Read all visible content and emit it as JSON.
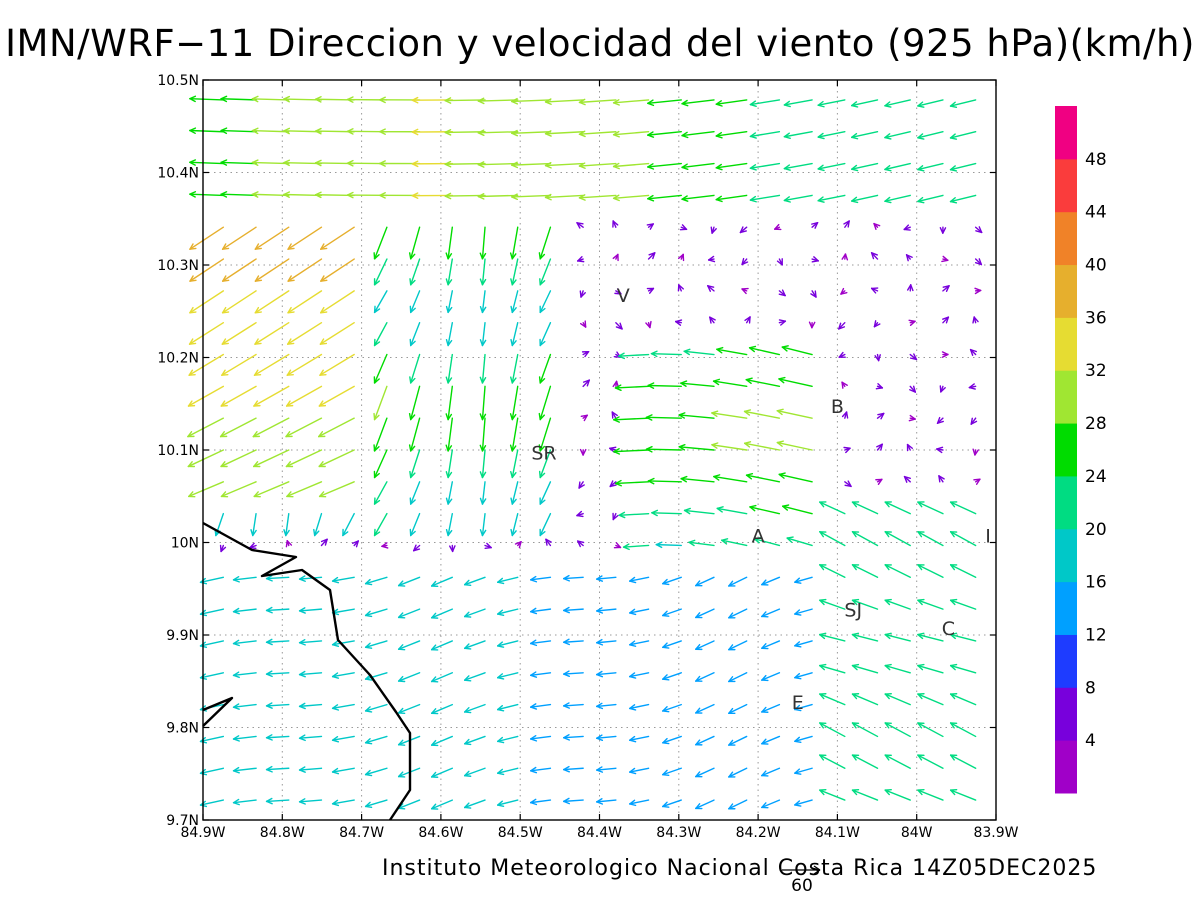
{
  "title": "IMN/WRF−11 Direccion y velocidad del viento (925 hPa)(km/h)",
  "credit": "Instituto Meteorologico Nacional Costa Rica 14Z05DEC2025",
  "reference_vector": {
    "label": "60"
  },
  "map": {
    "lon_range": [
      -84.9,
      -83.9
    ],
    "lat_range": [
      9.7,
      10.5
    ],
    "x_ticks": [
      "84.9W",
      "84.8W",
      "84.7W",
      "84.6W",
      "84.5W",
      "84.4W",
      "84.3W",
      "84.2W",
      "84.1W",
      "84W",
      "83.9W"
    ],
    "y_ticks": [
      "9.7N",
      "9.8N",
      "9.9N",
      "10N",
      "10.1N",
      "10.2N",
      "10.3N",
      "10.4N",
      "10.5N"
    ],
    "grid": "dotted",
    "place_labels": [
      {
        "label": "V",
        "lon": -84.37,
        "lat": 10.26
      },
      {
        "label": "SR",
        "lon": -84.47,
        "lat": 10.09
      },
      {
        "label": "B",
        "lon": -84.1,
        "lat": 10.14
      },
      {
        "label": "A",
        "lon": -84.2,
        "lat": 10.0
      },
      {
        "label": "I",
        "lon": -83.91,
        "lat": 10.0
      },
      {
        "label": "SJ",
        "lon": -84.08,
        "lat": 9.92
      },
      {
        "label": "C",
        "lon": -83.96,
        "lat": 9.9
      },
      {
        "label": "E",
        "lon": -84.15,
        "lat": 9.82
      }
    ]
  },
  "colorbar": {
    "ticks": [
      "4",
      "8",
      "12",
      "16",
      "20",
      "24",
      "28",
      "32",
      "36",
      "40",
      "44",
      "48"
    ],
    "colors": [
      "#a000c8",
      "#7800dc",
      "#1e3cff",
      "#00a0ff",
      "#00c8c8",
      "#00dc82",
      "#00dc00",
      "#a0e632",
      "#e6dc32",
      "#e6af2d",
      "#f08228",
      "#fa3c3c",
      "#f00082"
    ]
  },
  "colors": {
    "coastline": "#000000",
    "grid": "#9a9a9a"
  }
}
